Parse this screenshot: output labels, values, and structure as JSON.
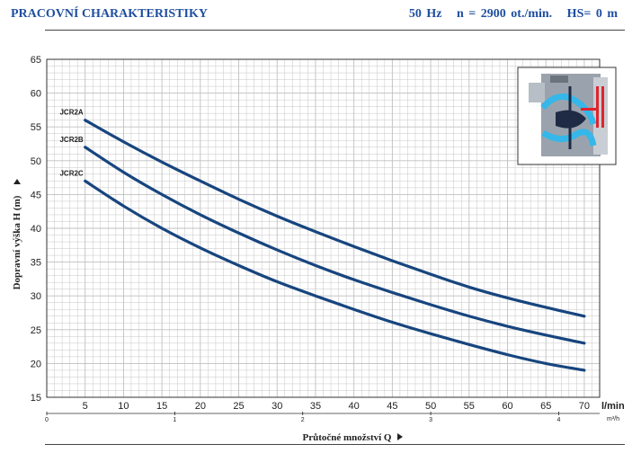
{
  "header": {
    "title": "PRACOVNÍ CHARAKTERISTIKY",
    "conditions": "50 Hz   n = 2900 ot./min.   HS= 0 m"
  },
  "colors": {
    "curve": "#17457e",
    "grid": "#c0c0c0",
    "frame": "#333333",
    "title": "#1f4fa0"
  },
  "icon": "pump-cross-section-icon",
  "chart_data": {
    "type": "line",
    "title": "",
    "ylabel": "Dopravní výška H (m)",
    "xlabel": "Průtočné množství Q",
    "x_unit": "l/min",
    "x2_unit": "m³/h",
    "ylim": [
      15,
      65
    ],
    "xlim": [
      0,
      72
    ],
    "y_ticks": [
      15,
      20,
      25,
      30,
      35,
      40,
      45,
      50,
      55,
      60,
      65
    ],
    "x_ticks": [
      5,
      10,
      15,
      20,
      25,
      30,
      35,
      40,
      45,
      50,
      55,
      60,
      65,
      70
    ],
    "x2_ticks": [
      0,
      1,
      2,
      3,
      4
    ],
    "grid": true,
    "legend": "labels at curve start",
    "series": [
      {
        "name": "JCR2A",
        "x": [
          5,
          10,
          15,
          20,
          25,
          30,
          35,
          40,
          45,
          50,
          55,
          60,
          65,
          70
        ],
        "values": [
          56,
          52.8,
          49.8,
          47,
          44.3,
          41.8,
          39.5,
          37.3,
          35.2,
          33.2,
          31.3,
          29.7,
          28.3,
          27
        ]
      },
      {
        "name": "JCR2B",
        "x": [
          5,
          10,
          15,
          20,
          25,
          30,
          35,
          40,
          45,
          50,
          55,
          60,
          65,
          70
        ],
        "values": [
          52,
          48.3,
          45,
          42,
          39.3,
          36.8,
          34.5,
          32.4,
          30.5,
          28.7,
          27,
          25.5,
          24.2,
          23
        ]
      },
      {
        "name": "JCR2C",
        "x": [
          5,
          10,
          15,
          20,
          25,
          30,
          35,
          40,
          45,
          50,
          55,
          60,
          65,
          70
        ],
        "values": [
          47,
          43.3,
          40,
          37.1,
          34.5,
          32.1,
          30,
          28,
          26.1,
          24.4,
          22.8,
          21.3,
          20,
          19
        ]
      }
    ]
  }
}
